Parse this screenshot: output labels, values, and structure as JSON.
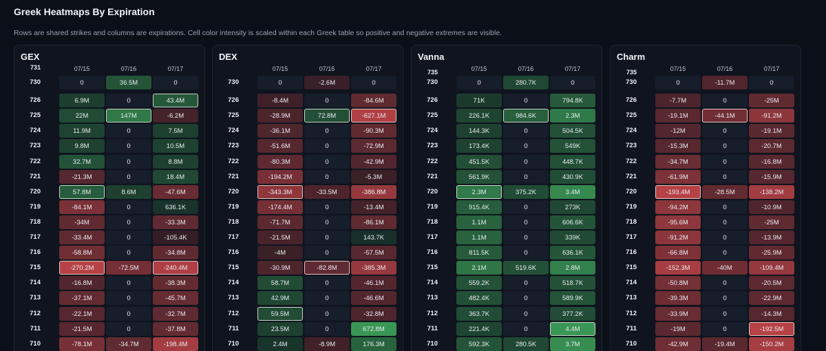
{
  "section": {
    "title": "Greek Heatmaps By Expiration",
    "description": "Rows are shared strikes and columns are expirations. Cell color intensity is scaled within each Greek table so positive and negative extremes are visible."
  },
  "expirations": [
    "07/15",
    "07/16",
    "07/17"
  ],
  "panels": [
    {
      "title": "GEX",
      "first_row_strike": "731",
      "rows": [
        {
          "strike": "730",
          "cells": [
            "0",
            "36.5M",
            "0"
          ]
        },
        {
          "strike": "726",
          "cells": [
            "6.9M",
            "0",
            "43.4M"
          ]
        },
        {
          "strike": "725",
          "cells": [
            "22M",
            "147M",
            "-6.2M"
          ]
        },
        {
          "strike": "724",
          "cells": [
            "11.9M",
            "0",
            "7.5M"
          ]
        },
        {
          "strike": "723",
          "cells": [
            "9.8M",
            "0",
            "10.5M"
          ]
        },
        {
          "strike": "722",
          "cells": [
            "32.7M",
            "0",
            "8.8M"
          ]
        },
        {
          "strike": "721",
          "cells": [
            "-21.3M",
            "0",
            "18.4M"
          ]
        },
        {
          "strike": "720",
          "cells": [
            "57.8M",
            "8.6M",
            "-47.6M"
          ]
        },
        {
          "strike": "719",
          "cells": [
            "-84.1M",
            "0",
            "636.1K"
          ]
        },
        {
          "strike": "718",
          "cells": [
            "-34M",
            "0",
            "-33.3M"
          ]
        },
        {
          "strike": "717",
          "cells": [
            "-33.4M",
            "0",
            "-105.4K"
          ]
        },
        {
          "strike": "716",
          "cells": [
            "-58.8M",
            "0",
            "-34.8M"
          ]
        },
        {
          "strike": "715",
          "cells": [
            "-270.2M",
            "-72.5M",
            "-240.4M"
          ]
        },
        {
          "strike": "714",
          "cells": [
            "-16.8M",
            "0",
            "-38.3M"
          ]
        },
        {
          "strike": "713",
          "cells": [
            "-37.1M",
            "0",
            "-45.7M"
          ]
        },
        {
          "strike": "712",
          "cells": [
            "-22.1M",
            "0",
            "-32.7M"
          ]
        },
        {
          "strike": "711",
          "cells": [
            "-21.5M",
            "0",
            "-37.8M"
          ]
        },
        {
          "strike": "710",
          "cells": [
            "-78.1M",
            "-34.7M",
            "-198.4M"
          ]
        }
      ],
      "highlights": [
        "1-2",
        "2-1",
        "7-0",
        "12-0",
        "12-2"
      ],
      "max_abs": 270.2
    },
    {
      "title": "DEX",
      "first_row_strike": "",
      "rows": [
        {
          "strike": "730",
          "cells": [
            "0",
            "-2.6M",
            "0"
          ]
        },
        {
          "strike": "726",
          "cells": [
            "-8.4M",
            "0",
            "-84.6M"
          ]
        },
        {
          "strike": "725",
          "cells": [
            "-28.9M",
            "72.8M",
            "-627.1M"
          ]
        },
        {
          "strike": "724",
          "cells": [
            "-36.1M",
            "0",
            "-90.3M"
          ]
        },
        {
          "strike": "723",
          "cells": [
            "-51.6M",
            "0",
            "-72.9M"
          ]
        },
        {
          "strike": "722",
          "cells": [
            "-80.3M",
            "0",
            "-42.9M"
          ]
        },
        {
          "strike": "721",
          "cells": [
            "-194.2M",
            "0",
            "-5.3M"
          ]
        },
        {
          "strike": "720",
          "cells": [
            "-343.3M",
            "-33.5M",
            "-386.8M"
          ]
        },
        {
          "strike": "719",
          "cells": [
            "-174.4M",
            "0",
            "-13.4M"
          ]
        },
        {
          "strike": "718",
          "cells": [
            "-71.7M",
            "0",
            "-86.1M"
          ]
        },
        {
          "strike": "717",
          "cells": [
            "-21.5M",
            "0",
            "143.7K"
          ]
        },
        {
          "strike": "716",
          "cells": [
            "-4M",
            "0",
            "-57.5M"
          ]
        },
        {
          "strike": "715",
          "cells": [
            "-30.9M",
            "-82.8M",
            "-385.3M"
          ]
        },
        {
          "strike": "714",
          "cells": [
            "58.7M",
            "0",
            "-46.1M"
          ]
        },
        {
          "strike": "713",
          "cells": [
            "42.9M",
            "0",
            "-46.6M"
          ]
        },
        {
          "strike": "712",
          "cells": [
            "59.5M",
            "0",
            "-32.8M"
          ]
        },
        {
          "strike": "711",
          "cells": [
            "23.5M",
            "0",
            "672.8M"
          ]
        },
        {
          "strike": "710",
          "cells": [
            "2.4M",
            "-8.9M",
            "176.3M"
          ]
        }
      ],
      "highlights": [
        "2-1",
        "2-2",
        "7-0",
        "12-1",
        "15-0"
      ],
      "max_abs": 672.8
    },
    {
      "title": "Vanna",
      "first_row_strike": "735",
      "rows": [
        {
          "strike": "730",
          "cells": [
            "0",
            "280.7K",
            "0"
          ]
        },
        {
          "strike": "726",
          "cells": [
            "71K",
            "0",
            "794.8K"
          ]
        },
        {
          "strike": "725",
          "cells": [
            "226.1K",
            "984.6K",
            "2.3M"
          ]
        },
        {
          "strike": "724",
          "cells": [
            "144.3K",
            "0",
            "504.5K"
          ]
        },
        {
          "strike": "723",
          "cells": [
            "173.4K",
            "0",
            "549K"
          ]
        },
        {
          "strike": "722",
          "cells": [
            "451.5K",
            "0",
            "448.7K"
          ]
        },
        {
          "strike": "721",
          "cells": [
            "561.9K",
            "0",
            "430.9K"
          ]
        },
        {
          "strike": "720",
          "cells": [
            "2.3M",
            "375.2K",
            "3.4M"
          ]
        },
        {
          "strike": "719",
          "cells": [
            "915.4K",
            "0",
            "273K"
          ]
        },
        {
          "strike": "718",
          "cells": [
            "1.1M",
            "0",
            "606.6K"
          ]
        },
        {
          "strike": "717",
          "cells": [
            "1.1M",
            "0",
            "339K"
          ]
        },
        {
          "strike": "716",
          "cells": [
            "811.5K",
            "0",
            "636.1K"
          ]
        },
        {
          "strike": "715",
          "cells": [
            "2.1M",
            "519.6K",
            "2.8M"
          ]
        },
        {
          "strike": "714",
          "cells": [
            "559.2K",
            "0",
            "518.7K"
          ]
        },
        {
          "strike": "713",
          "cells": [
            "482.4K",
            "0",
            "589.9K"
          ]
        },
        {
          "strike": "712",
          "cells": [
            "363.7K",
            "0",
            "377.2K"
          ]
        },
        {
          "strike": "711",
          "cells": [
            "221.4K",
            "0",
            "4.4M"
          ]
        },
        {
          "strike": "710",
          "cells": [
            "592.3K",
            "280.5K",
            "3.7M"
          ]
        }
      ],
      "highlights": [
        "2-1",
        "7-0",
        "16-2"
      ],
      "max_abs": 4400
    },
    {
      "title": "Charm",
      "first_row_strike": "735",
      "rows": [
        {
          "strike": "730",
          "cells": [
            "0",
            "-11.7M",
            "0"
          ]
        },
        {
          "strike": "726",
          "cells": [
            "-7.7M",
            "0",
            "-25M"
          ]
        },
        {
          "strike": "725",
          "cells": [
            "-19.1M",
            "-44.1M",
            "-91.2M"
          ]
        },
        {
          "strike": "724",
          "cells": [
            "-12M",
            "0",
            "-19.1M"
          ]
        },
        {
          "strike": "723",
          "cells": [
            "-15.3M",
            "0",
            "-20.7M"
          ]
        },
        {
          "strike": "722",
          "cells": [
            "-34.7M",
            "0",
            "-16.8M"
          ]
        },
        {
          "strike": "721",
          "cells": [
            "-61.9M",
            "0",
            "-15.9M"
          ]
        },
        {
          "strike": "720",
          "cells": [
            "-193.4M",
            "-28.5M",
            "-138.2M"
          ]
        },
        {
          "strike": "719",
          "cells": [
            "-94.2M",
            "0",
            "-10.9M"
          ]
        },
        {
          "strike": "718",
          "cells": [
            "-95.6M",
            "0",
            "-25M"
          ]
        },
        {
          "strike": "717",
          "cells": [
            "-91.2M",
            "0",
            "-13.9M"
          ]
        },
        {
          "strike": "716",
          "cells": [
            "-66.8M",
            "0",
            "-25.9M"
          ]
        },
        {
          "strike": "715",
          "cells": [
            "-152.3M",
            "-40M",
            "-109.4M"
          ]
        },
        {
          "strike": "714",
          "cells": [
            "-50.8M",
            "0",
            "-20.5M"
          ]
        },
        {
          "strike": "713",
          "cells": [
            "-39.3M",
            "0",
            "-22.9M"
          ]
        },
        {
          "strike": "712",
          "cells": [
            "-33.9M",
            "0",
            "-14.3M"
          ]
        },
        {
          "strike": "711",
          "cells": [
            "-19M",
            "0",
            "-192.5M"
          ]
        },
        {
          "strike": "710",
          "cells": [
            "-42.9M",
            "-19.4M",
            "-150.2M"
          ]
        }
      ],
      "highlights": [
        "2-1",
        "7-0",
        "16-2"
      ],
      "max_abs": 193.4
    }
  ],
  "colors": {
    "positive": "#3fa45a",
    "negative": "#c9474a",
    "neutral": "#161d2b"
  }
}
